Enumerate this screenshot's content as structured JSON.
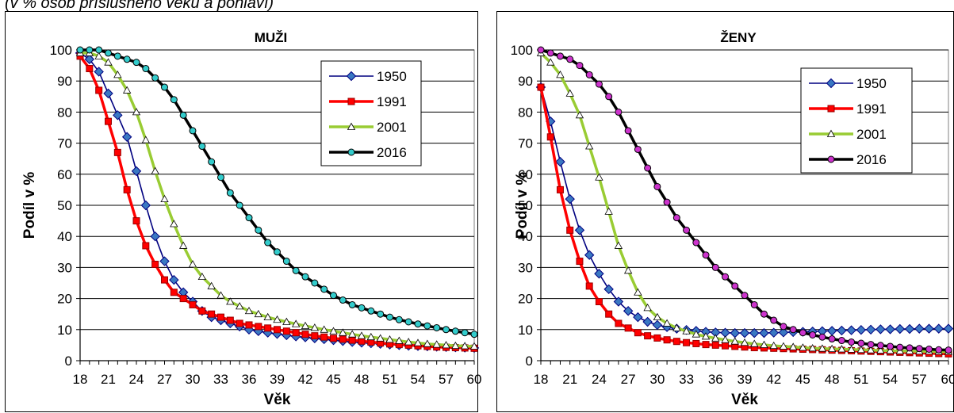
{
  "caption": "(v % osob příslušného věku a pohlaví)",
  "chart_data": [
    {
      "type": "line",
      "title": "MUŽI",
      "xlabel": "Věk",
      "ylabel": "Podíl v %",
      "xlim": [
        18,
        60
      ],
      "ylim": [
        0,
        100
      ],
      "x_ticks": [
        "18",
        "21",
        "24",
        "27",
        "30",
        "33",
        "36",
        "39",
        "42",
        "45",
        "48",
        "51",
        "54",
        "57",
        "60"
      ],
      "y_ticks": [
        "0",
        "10",
        "20",
        "30",
        "40",
        "50",
        "60",
        "70",
        "80",
        "90",
        "100"
      ],
      "grid": "horizontal",
      "legend": "top-right",
      "x": [
        18,
        19,
        20,
        21,
        22,
        23,
        24,
        25,
        26,
        27,
        28,
        29,
        30,
        31,
        32,
        33,
        34,
        35,
        36,
        37,
        38,
        39,
        40,
        41,
        42,
        43,
        44,
        45,
        46,
        47,
        48,
        49,
        50,
        51,
        52,
        53,
        54,
        55,
        56,
        57,
        58,
        59,
        60
      ],
      "series": [
        {
          "name": "1950",
          "color": "#000080",
          "marker": "diamond",
          "marker_fill": "#3a78c2",
          "values": [
            99,
            97,
            93,
            86,
            79,
            72,
            61,
            50,
            40,
            32,
            26,
            22,
            19,
            16,
            14,
            13,
            12,
            11,
            10,
            9.5,
            9,
            8.6,
            8.2,
            7.8,
            7.5,
            7.2,
            6.9,
            6.6,
            6.3,
            6,
            5.8,
            5.6,
            5.4,
            5.2,
            5,
            4.8,
            4.7,
            4.6,
            4.5,
            4.4,
            4.3,
            4.2,
            4.1
          ]
        },
        {
          "name": "1991",
          "color": "#ff0000",
          "marker": "square",
          "marker_fill": "#ff0000",
          "values": [
            98,
            94,
            87,
            77,
            67,
            55,
            45,
            37,
            31,
            26,
            22,
            20,
            18,
            16,
            15,
            14,
            13,
            12,
            11.5,
            11,
            10.5,
            10,
            9.5,
            9,
            8.5,
            8,
            7.6,
            7.2,
            6.9,
            6.6,
            6.3,
            6,
            5.7,
            5.4,
            5.2,
            5,
            4.8,
            4.6,
            4.4,
            4.3,
            4.2,
            4.1,
            4
          ]
        },
        {
          "name": "2001",
          "color": "#99cc33",
          "marker": "triangle",
          "marker_fill": "#ffffff",
          "values": [
            99,
            99,
            98,
            96,
            92,
            87,
            80,
            71,
            61,
            52,
            44,
            37,
            31,
            27,
            24,
            21,
            19,
            17.5,
            16,
            15,
            14,
            13.2,
            12.5,
            11.8,
            11.2,
            10.6,
            10,
            9.5,
            9,
            8.5,
            8,
            7.6,
            7.2,
            6.8,
            6.4,
            6,
            5.7,
            5.4,
            5.2,
            5,
            4.8,
            4.7,
            4.6
          ]
        },
        {
          "name": "2016",
          "color": "#000000",
          "marker": "circle",
          "marker_fill": "#33cccc",
          "values": [
            100,
            100,
            100,
            99,
            98,
            97,
            96,
            94,
            91,
            88,
            84,
            79,
            74,
            69,
            64,
            59,
            54,
            50,
            46,
            42,
            38,
            35,
            32,
            29,
            27,
            25,
            23,
            21,
            19.5,
            18,
            17,
            16,
            15,
            14,
            13.2,
            12.5,
            11.8,
            11.2,
            10.6,
            10,
            9.5,
            9,
            8.5
          ]
        }
      ]
    },
    {
      "type": "line",
      "title": "ŽENY",
      "xlabel": "Věk",
      "ylabel": "Podíl v %",
      "xlim": [
        18,
        60
      ],
      "ylim": [
        0,
        100
      ],
      "x_ticks": [
        "18",
        "21",
        "24",
        "27",
        "30",
        "33",
        "36",
        "39",
        "42",
        "45",
        "48",
        "51",
        "54",
        "57",
        "60"
      ],
      "y_ticks": [
        "0",
        "10",
        "20",
        "30",
        "40",
        "50",
        "60",
        "70",
        "80",
        "90",
        "100"
      ],
      "grid": "horizontal",
      "legend": "top-right",
      "x": [
        18,
        19,
        20,
        21,
        22,
        23,
        24,
        25,
        26,
        27,
        28,
        29,
        30,
        31,
        32,
        33,
        34,
        35,
        36,
        37,
        38,
        39,
        40,
        41,
        42,
        43,
        44,
        45,
        46,
        47,
        48,
        49,
        50,
        51,
        52,
        53,
        54,
        55,
        56,
        57,
        58,
        59,
        60
      ],
      "series": [
        {
          "name": "1950",
          "color": "#000080",
          "marker": "diamond",
          "marker_fill": "#3a78c2",
          "values": [
            88,
            77,
            64,
            52,
            42,
            34,
            28,
            23,
            19,
            16,
            14,
            12.5,
            11.5,
            10.8,
            10.3,
            9.9,
            9.6,
            9.3,
            9.1,
            9,
            8.9,
            8.9,
            8.9,
            8.9,
            9,
            9.1,
            9.2,
            9.3,
            9.4,
            9.5,
            9.6,
            9.7,
            9.8,
            9.9,
            10,
            10.1,
            10.1,
            10.2,
            10.2,
            10.3,
            10.3,
            10.3,
            10.3
          ]
        },
        {
          "name": "1991",
          "color": "#ff0000",
          "marker": "square",
          "marker_fill": "#ff0000",
          "values": [
            88,
            72,
            55,
            42,
            32,
            24,
            19,
            15,
            12,
            10.5,
            9,
            8,
            7.3,
            6.7,
            6.2,
            5.8,
            5.5,
            5.2,
            5,
            4.8,
            4.6,
            4.4,
            4.2,
            4.1,
            4,
            3.9,
            3.8,
            3.7,
            3.6,
            3.5,
            3.4,
            3.3,
            3.2,
            3.1,
            3,
            2.9,
            2.8,
            2.7,
            2.6,
            2.5,
            2.4,
            2.3,
            2.2
          ]
        },
        {
          "name": "2001",
          "color": "#99cc33",
          "marker": "triangle",
          "marker_fill": "#ffffff",
          "values": [
            99,
            96,
            92,
            86,
            79,
            69,
            59,
            48,
            37,
            29,
            22,
            17,
            14,
            12,
            10.5,
            9.5,
            8.5,
            7.8,
            7.2,
            6.7,
            6.2,
            5.8,
            5.4,
            5.1,
            4.8,
            4.6,
            4.4,
            4.2,
            4,
            3.9,
            3.8,
            3.7,
            3.6,
            3.5,
            3.4,
            3.3,
            3.2,
            3.1,
            3.1,
            3,
            3,
            2.9,
            2.9
          ]
        },
        {
          "name": "2016",
          "color": "#000000",
          "marker": "circle",
          "marker_fill": "#cc33cc",
          "values": [
            100,
            99,
            98,
            97,
            95,
            92,
            89,
            85,
            80,
            74,
            68,
            62,
            56,
            51,
            46,
            42,
            38,
            34,
            30,
            27,
            24,
            21,
            18,
            15,
            13,
            11,
            10,
            9,
            8.3,
            7.6,
            7,
            6.5,
            6,
            5.6,
            5.2,
            4.9,
            4.6,
            4.3,
            4.1,
            3.9,
            3.7,
            3.5,
            3.4
          ]
        }
      ]
    }
  ]
}
